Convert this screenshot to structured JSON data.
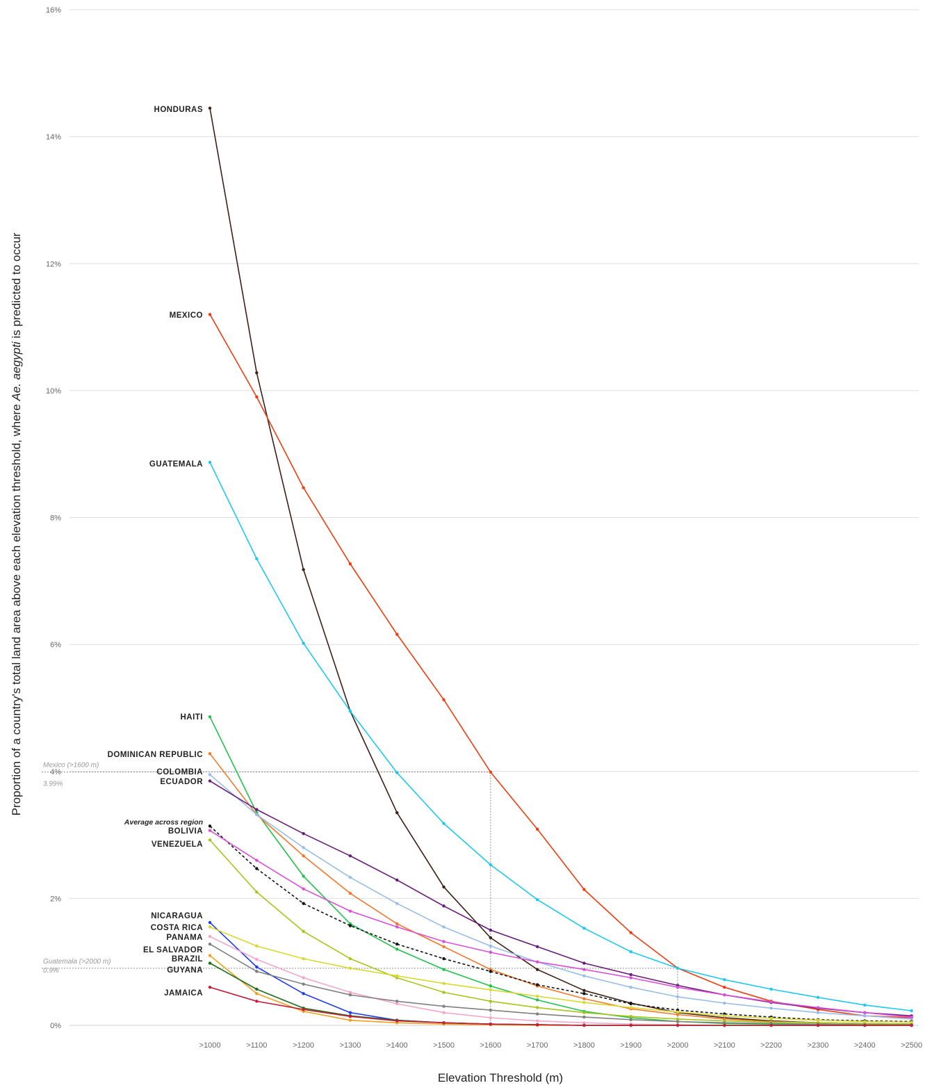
{
  "chart_data": {
    "type": "line",
    "xlabel": "Elevation Threshold (m)",
    "ylabel_parts": [
      "Proportion of a country's total land area above each elevation threshold, where ",
      "Ae. aegypti",
      " is predicted to occur"
    ],
    "ylim": [
      0,
      16
    ],
    "yticks": [
      0,
      2,
      4,
      6,
      8,
      10,
      12,
      14,
      16
    ],
    "ytick_labels": [
      "0%",
      "2%",
      "4%",
      "6%",
      "8%",
      "10%",
      "12%",
      "14%",
      "16%"
    ],
    "categories": [
      ">1000",
      ">1100",
      ">1200",
      ">1300",
      ">1400",
      ">1500",
      ">1600",
      ">1700",
      ">1800",
      ">1900",
      ">2000",
      ">2100",
      ">2200",
      ">2300",
      ">2400",
      ">2500"
    ],
    "grid": true,
    "series": [
      {
        "name": "HONDURAS",
        "color": "#3d1f14",
        "values": [
          14.45,
          10.28,
          7.18,
          4.95,
          3.35,
          2.18,
          1.38,
          0.88,
          0.55,
          0.35,
          0.2,
          0.12,
          0.07,
          0.04,
          0.03,
          0.02
        ]
      },
      {
        "name": "MEXICO",
        "color": "#f03c0f",
        "values": [
          11.2,
          9.9,
          8.47,
          7.27,
          6.16,
          5.13,
          3.99,
          3.09,
          2.14,
          1.46,
          0.9,
          0.6,
          0.38,
          0.25,
          0.15,
          0.12
        ]
      },
      {
        "name": "GUATEMALA",
        "color": "#1ec8f0",
        "values": [
          8.87,
          7.35,
          6.02,
          4.95,
          3.98,
          3.18,
          2.53,
          1.98,
          1.53,
          1.16,
          0.9,
          0.72,
          0.57,
          0.44,
          0.32,
          0.23
        ]
      },
      {
        "name": "HAITI",
        "color": "#1fc24a",
        "values": [
          4.86,
          3.35,
          2.35,
          1.6,
          1.2,
          0.88,
          0.62,
          0.4,
          0.22,
          0.12,
          0.06,
          0.03,
          0.02,
          0.01,
          0.01,
          0.0
        ]
      },
      {
        "name": "DOMINICAN REPUBLIC",
        "color": "#f4772a",
        "values": [
          4.28,
          3.32,
          2.67,
          2.08,
          1.6,
          1.24,
          0.88,
          0.62,
          0.42,
          0.26,
          0.17,
          0.1,
          0.06,
          0.04,
          0.03,
          0.02
        ]
      },
      {
        "name": "COLOMBIA",
        "color": "#98bde8",
        "values": [
          3.95,
          3.32,
          2.8,
          2.33,
          1.92,
          1.55,
          1.25,
          1.0,
          0.78,
          0.6,
          0.45,
          0.35,
          0.27,
          0.2,
          0.15,
          0.1
        ]
      },
      {
        "name": "ECUADOR",
        "color": "#6a1a7a",
        "values": [
          3.85,
          3.4,
          3.02,
          2.67,
          2.29,
          1.88,
          1.5,
          1.24,
          0.98,
          0.8,
          0.63,
          0.48,
          0.36,
          0.27,
          0.2,
          0.15
        ]
      },
      {
        "name": "Average across region",
        "color": "#111111",
        "dashed": true,
        "values": [
          3.14,
          2.47,
          1.92,
          1.57,
          1.28,
          1.05,
          0.85,
          0.64,
          0.5,
          0.34,
          0.24,
          0.18,
          0.13,
          0.09,
          0.07,
          0.06
        ]
      },
      {
        "name": "BOLIVIA",
        "color": "#d94fd6",
        "values": [
          3.07,
          2.6,
          2.15,
          1.8,
          1.55,
          1.32,
          1.15,
          1.0,
          0.88,
          0.75,
          0.6,
          0.48,
          0.37,
          0.28,
          0.2,
          0.13
        ]
      },
      {
        "name": "VENEZUELA",
        "color": "#a8c41a",
        "values": [
          2.92,
          2.1,
          1.48,
          1.05,
          0.75,
          0.52,
          0.38,
          0.28,
          0.2,
          0.14,
          0.1,
          0.07,
          0.05,
          0.04,
          0.03,
          0.02
        ]
      },
      {
        "name": "NICARAGUA",
        "color": "#1f3cf0",
        "values": [
          1.62,
          0.92,
          0.5,
          0.2,
          0.08,
          0.04,
          0.02,
          0.01,
          0.0,
          0.0,
          0.0,
          0.0,
          0.0,
          0.0,
          0.0,
          0.0
        ]
      },
      {
        "name": "COSTA RICA",
        "color": "#d8d830",
        "values": [
          1.55,
          1.25,
          1.05,
          0.9,
          0.78,
          0.66,
          0.56,
          0.46,
          0.36,
          0.28,
          0.21,
          0.15,
          0.11,
          0.08,
          0.06,
          0.05
        ]
      },
      {
        "name": "PANAMA",
        "color": "#f4a6c8",
        "values": [
          1.4,
          1.04,
          0.75,
          0.52,
          0.34,
          0.2,
          0.12,
          0.07,
          0.04,
          0.02,
          0.01,
          0.0,
          0.0,
          0.0,
          0.0,
          0.0
        ]
      },
      {
        "name": "EL SALVADOR",
        "color": "#7f7f7f",
        "values": [
          1.28,
          0.85,
          0.65,
          0.48,
          0.38,
          0.3,
          0.24,
          0.18,
          0.13,
          0.09,
          0.06,
          0.04,
          0.03,
          0.02,
          0.01,
          0.01
        ]
      },
      {
        "name": "BRAZIL",
        "color": "#f0a01a",
        "values": [
          1.1,
          0.5,
          0.22,
          0.08,
          0.04,
          0.02,
          0.01,
          0.0,
          0.0,
          0.0,
          0.0,
          0.0,
          0.0,
          0.0,
          0.0,
          0.0
        ]
      },
      {
        "name": "GUYANA",
        "color": "#1a6e1a",
        "values": [
          0.98,
          0.57,
          0.27,
          0.15,
          0.08,
          0.04,
          0.02,
          0.01,
          0.0,
          0.0,
          0.0,
          0.0,
          0.0,
          0.0,
          0.0,
          0.0
        ]
      },
      {
        "name": "JAMAICA",
        "color": "#c41e3a",
        "values": [
          0.6,
          0.38,
          0.25,
          0.14,
          0.07,
          0.04,
          0.02,
          0.01,
          0.0,
          0.0,
          0.0,
          0.0,
          0.0,
          0.0,
          0.0,
          0.0
        ]
      }
    ],
    "annotations": [
      {
        "line1": "Mexico (>1600 m)",
        "line2": "3.99%",
        "x_index": 6,
        "y": 3.99
      },
      {
        "line1": "Guatemala (>2000 m)",
        "line2": "0.9%",
        "x_index": 10,
        "y": 0.9
      }
    ]
  }
}
